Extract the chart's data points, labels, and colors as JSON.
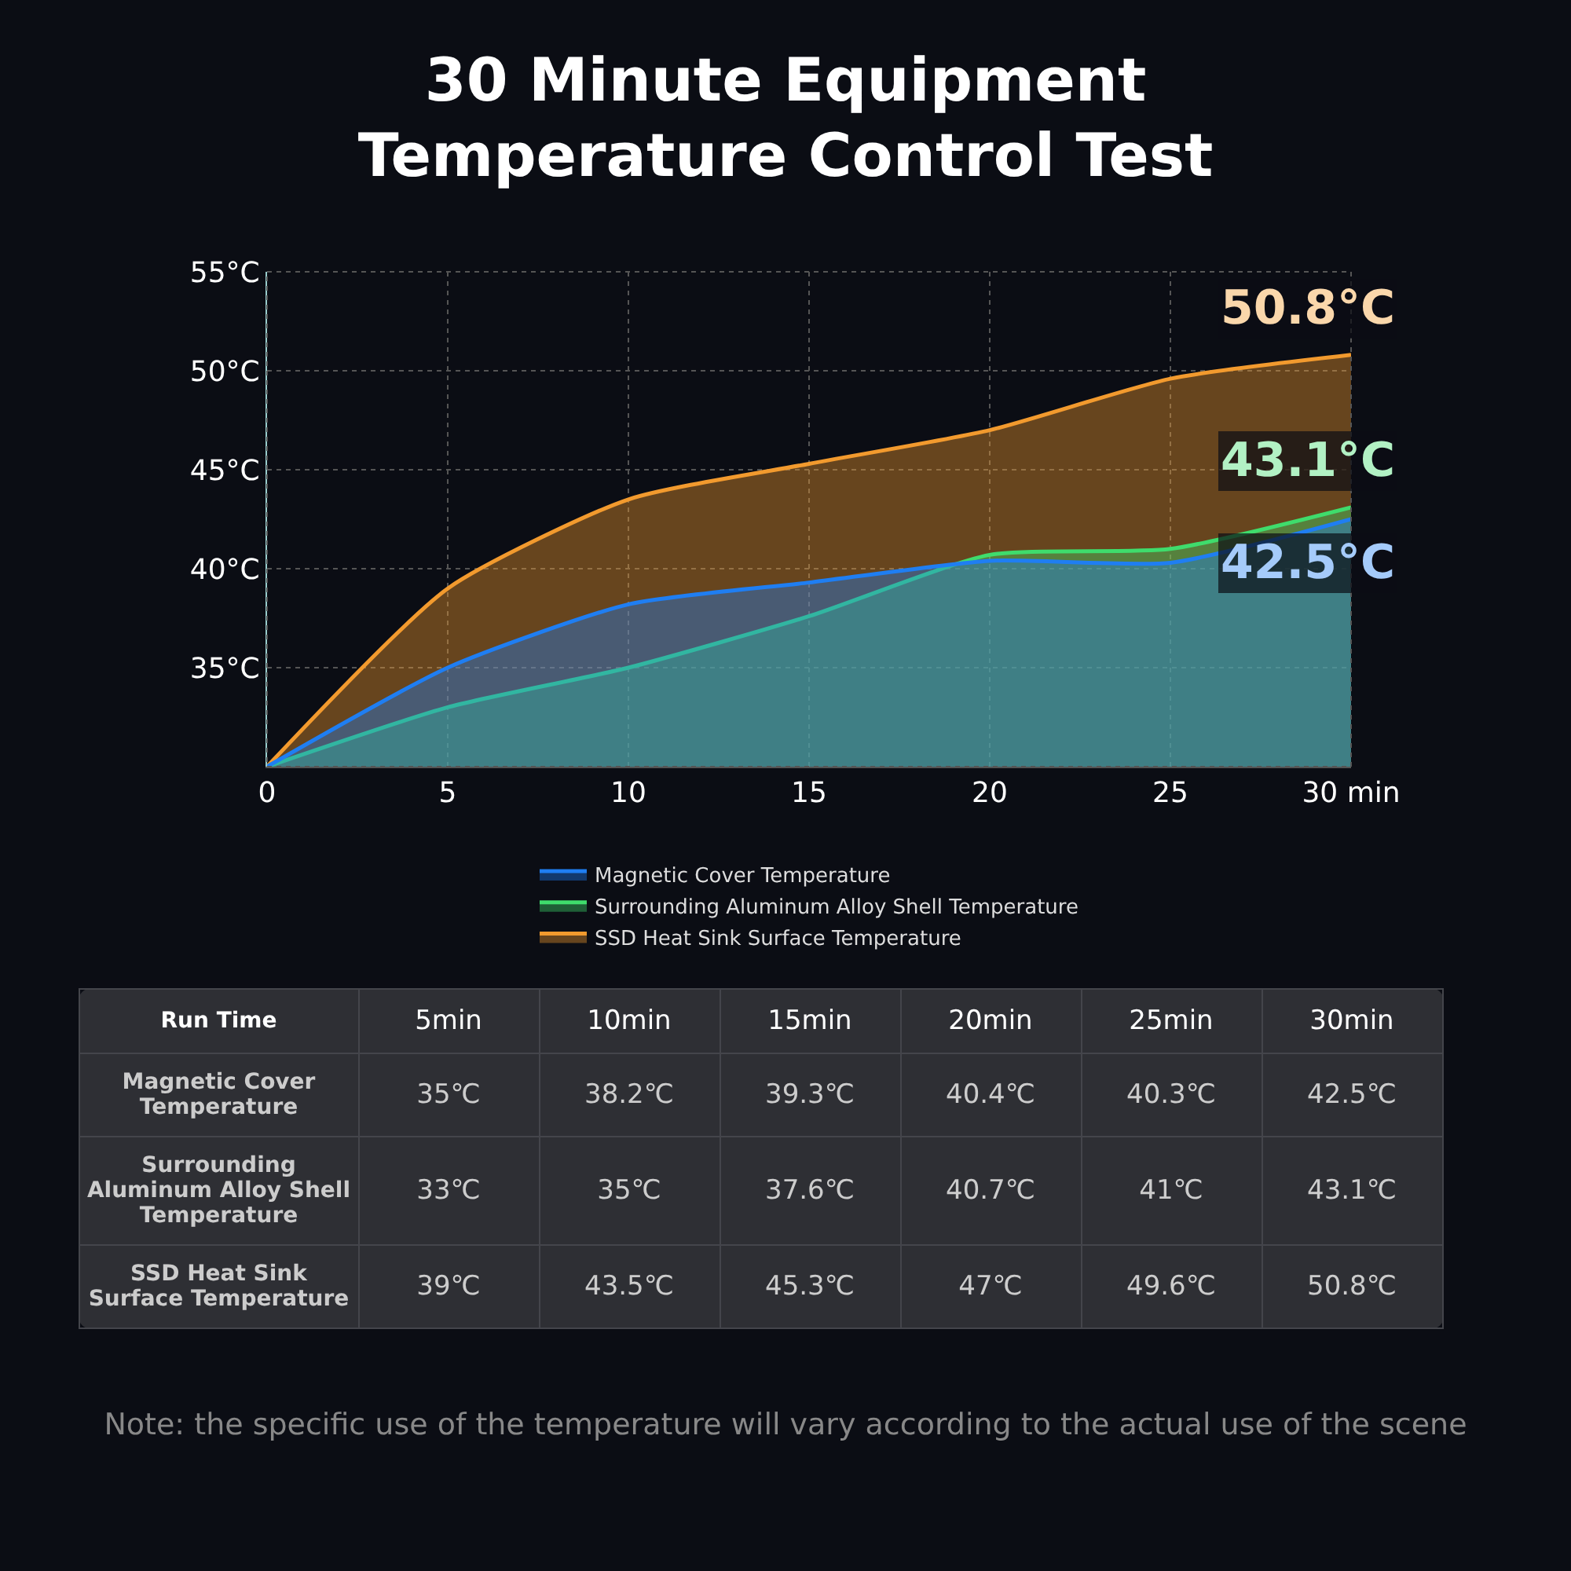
{
  "chart_data": {
    "type": "area",
    "title": "30 Minute Equipment Temperature Control Test",
    "x": [
      0,
      5,
      10,
      15,
      20,
      25,
      30
    ],
    "series": [
      {
        "name": "Magnetic Cover Temperature",
        "color": "#1f7ef2",
        "values": [
          30,
          35,
          38.2,
          39.3,
          40.4,
          40.3,
          42.5
        ]
      },
      {
        "name": "Surrounding Aluminum Alloy Shell Temperature",
        "color": "#3fdc6c",
        "values": [
          30,
          33,
          35,
          37.6,
          40.7,
          41,
          43.1
        ]
      },
      {
        "name": "SSD Heat Sink Surface Temperature",
        "color": "#f29a2e",
        "values": [
          30,
          39,
          43.5,
          45.3,
          47,
          49.6,
          50.8
        ]
      }
    ],
    "xlim": [
      0,
      30
    ],
    "xticks": [
      0,
      5,
      10,
      15,
      20,
      25,
      {
        "value": 30,
        "label": "30 min"
      }
    ],
    "ylim": [
      30,
      55
    ],
    "yticks": [
      {
        "value": 30,
        "label": null
      },
      {
        "value": 35,
        "label": "35°C"
      },
      {
        "value": 40,
        "label": "40°C"
      },
      {
        "value": 45,
        "label": "45°C"
      },
      {
        "value": 50,
        "label": "50°C"
      },
      {
        "value": 55,
        "label": "55°C"
      }
    ],
    "grid": true,
    "legend": "bottom",
    "marker": "none",
    "line_style": "solid",
    "annotations": [
      "42.5°C",
      "43.1°C",
      "50.8°C",
      "Run Time",
      "5min",
      "10min",
      "15min",
      "20min",
      "25min",
      "30min",
      "35℃",
      "38.2℃",
      "39.3℃",
      "40.4℃",
      "40.3℃",
      "42.5℃",
      "33℃",
      "35℃",
      "37.6℃",
      "40.7℃",
      "41℃",
      "43.1℃",
      "39℃",
      "43.5℃",
      "45.3℃",
      "47℃",
      "49.6℃",
      "50.8℃",
      "Note: the specific use of the temperature will vary according to the actual use of the scene"
    ]
  }
}
